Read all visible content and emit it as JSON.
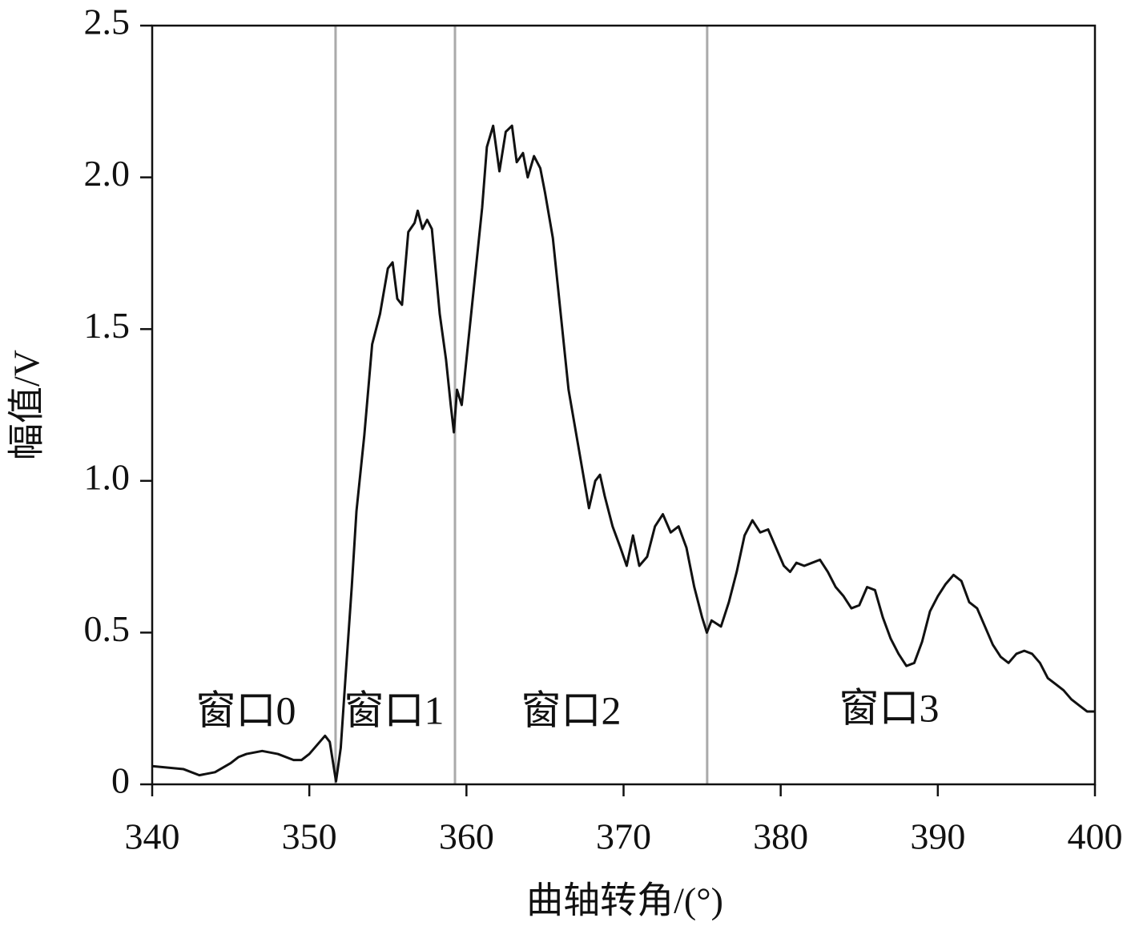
{
  "chart_data": {
    "type": "line",
    "xlabel": "曲轴转角/(°)",
    "ylabel": "幅值/V",
    "x": [
      340,
      341,
      342,
      343,
      344,
      345,
      345.5,
      346,
      347,
      348,
      349,
      349.5,
      350,
      350.5,
      351,
      351.3,
      351.7,
      352,
      352.3,
      352.7,
      353,
      353.5,
      354,
      354.5,
      355,
      355.3,
      355.6,
      355.9,
      356.3,
      356.7,
      356.9,
      357.2,
      357.5,
      357.8,
      358.3,
      358.7,
      359,
      359.2,
      359.4,
      359.7,
      360,
      360.5,
      361,
      361.3,
      361.7,
      362.1,
      362.5,
      362.9,
      363.2,
      363.6,
      363.9,
      364.3,
      364.7,
      365,
      365.5,
      366,
      366.5,
      367,
      367.5,
      367.8,
      368.2,
      368.5,
      368.8,
      369.3,
      369.8,
      370.2,
      370.6,
      371,
      371.5,
      372,
      372.5,
      373,
      373.5,
      374,
      374.5,
      375,
      375.3,
      375.6,
      376.2,
      376.7,
      377.2,
      377.7,
      378.2,
      378.7,
      379.2,
      379.7,
      380.2,
      380.6,
      381,
      381.5,
      382,
      382.5,
      383,
      383.5,
      384,
      384.5,
      385,
      385.5,
      386,
      386.5,
      387,
      387.5,
      388,
      388.5,
      389,
      389.5,
      390,
      390.5,
      391,
      391.5,
      392,
      392.5,
      393,
      393.5,
      394,
      394.5,
      395,
      395.5,
      396,
      396.5,
      397,
      397.5,
      398,
      398.5,
      399,
      399.5,
      400
    ],
    "values": [
      0.06,
      0.055,
      0.05,
      0.03,
      0.04,
      0.07,
      0.09,
      0.1,
      0.11,
      0.1,
      0.08,
      0.08,
      0.1,
      0.13,
      0.16,
      0.14,
      0.01,
      0.12,
      0.35,
      0.65,
      0.9,
      1.15,
      1.45,
      1.55,
      1.7,
      1.72,
      1.6,
      1.58,
      1.82,
      1.85,
      1.89,
      1.83,
      1.86,
      1.83,
      1.55,
      1.4,
      1.25,
      1.16,
      1.3,
      1.25,
      1.4,
      1.65,
      1.9,
      2.1,
      2.17,
      2.02,
      2.15,
      2.17,
      2.05,
      2.08,
      2.0,
      2.07,
      2.03,
      1.95,
      1.8,
      1.55,
      1.3,
      1.15,
      1.0,
      0.91,
      1.0,
      1.02,
      0.95,
      0.85,
      0.78,
      0.72,
      0.82,
      0.72,
      0.75,
      0.85,
      0.89,
      0.83,
      0.85,
      0.78,
      0.65,
      0.55,
      0.5,
      0.54,
      0.52,
      0.6,
      0.7,
      0.82,
      0.87,
      0.83,
      0.84,
      0.78,
      0.72,
      0.7,
      0.73,
      0.72,
      0.73,
      0.74,
      0.7,
      0.65,
      0.62,
      0.58,
      0.59,
      0.65,
      0.64,
      0.55,
      0.48,
      0.43,
      0.39,
      0.4,
      0.47,
      0.57,
      0.62,
      0.66,
      0.69,
      0.67,
      0.6,
      0.58,
      0.52,
      0.46,
      0.42,
      0.4,
      0.43,
      0.44,
      0.43,
      0.4,
      0.35,
      0.33,
      0.31,
      0.28,
      0.26,
      0.24,
      0.24
    ],
    "color": "#111111",
    "vlines": [
      351.67,
      359.27,
      375.32
    ],
    "vline_color": "#aaaaaa",
    "annotations": [
      "窗口0",
      "窗口1",
      "窗口2",
      "窗口3"
    ],
    "xlim": [
      340,
      400
    ],
    "xticks": [
      340,
      350,
      360,
      370,
      380,
      390,
      400
    ],
    "ylim": [
      0,
      2.5
    ],
    "yticks": [
      0,
      0.5,
      {
        "value": 1,
        "label": "1.0"
      },
      1.5,
      {
        "value": 2,
        "label": "2.0"
      },
      2.5
    ],
    "grid": false
  }
}
